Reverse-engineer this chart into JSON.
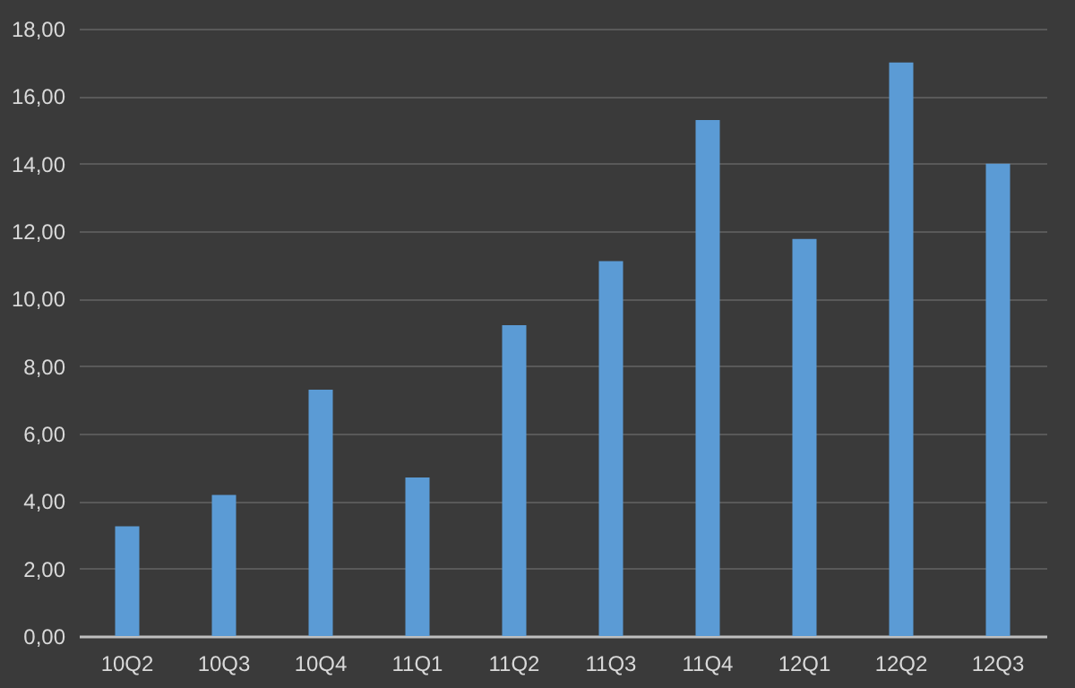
{
  "chart_data": {
    "type": "bar",
    "categories": [
      "10Q2",
      "10Q3",
      "10Q4",
      "11Q1",
      "11Q2",
      "11Q3",
      "11Q4",
      "12Q1",
      "12Q2",
      "12Q3"
    ],
    "values": [
      3.25,
      4.18,
      7.3,
      4.7,
      9.21,
      11.11,
      15.29,
      11.77,
      17.0,
      14.0
    ],
    "color": "#5b9bd5",
    "ylim": [
      0,
      18
    ],
    "yticks": [
      {
        "value": 0,
        "label": "0,00"
      },
      {
        "value": 2,
        "label": "2,00"
      },
      {
        "value": 4,
        "label": "4,00"
      },
      {
        "value": 6,
        "label": "6,00"
      },
      {
        "value": 8,
        "label": "8,00"
      },
      {
        "value": 10,
        "label": "10,00"
      },
      {
        "value": 12,
        "label": "12,00"
      },
      {
        "value": 14,
        "label": "14,00"
      },
      {
        "value": 16,
        "label": "16,00"
      },
      {
        "value": 18,
        "label": "18,00"
      }
    ],
    "grid": "y"
  }
}
